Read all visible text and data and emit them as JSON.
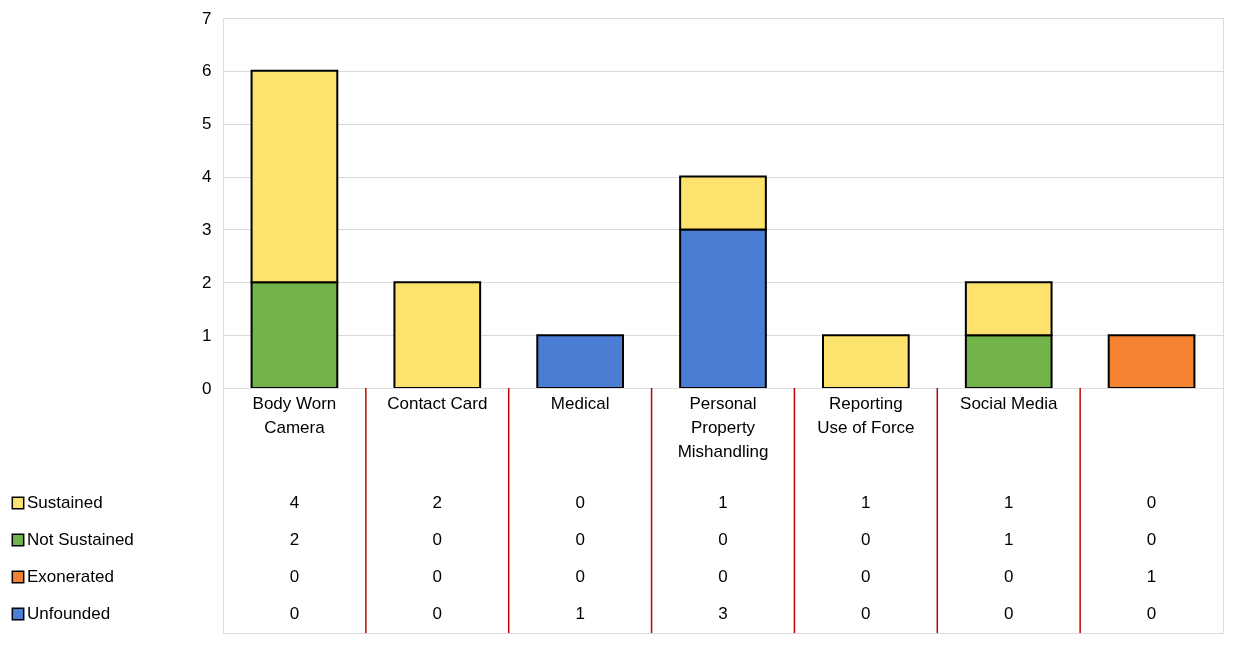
{
  "chart_data": {
    "type": "bar",
    "stacked": true,
    "categories": [
      "Body Worn Camera",
      "Contact Card",
      "Medical",
      "Personal Property Mishandling",
      "Reporting Use of Force",
      "Social Media",
      null
    ],
    "series": [
      {
        "name": "Unfounded",
        "color": "#4a7dd3",
        "values": [
          0,
          0,
          1,
          3,
          0,
          0,
          0
        ]
      },
      {
        "name": "Exonerated",
        "color": "#f58231",
        "values": [
          0,
          0,
          0,
          0,
          0,
          0,
          1
        ]
      },
      {
        "name": "Not Sustained",
        "color": "#72b449",
        "values": [
          2,
          0,
          0,
          0,
          0,
          1,
          0
        ]
      },
      {
        "name": "Sustained",
        "color": "#fde26e",
        "values": [
          4,
          2,
          0,
          1,
          1,
          1,
          0
        ]
      }
    ],
    "ylim": [
      0,
      7
    ],
    "yticks": [
      0,
      1,
      2,
      3,
      4,
      5,
      6,
      7
    ],
    "grid": "y",
    "legend": "bottom left",
    "data_labels": true
  }
}
